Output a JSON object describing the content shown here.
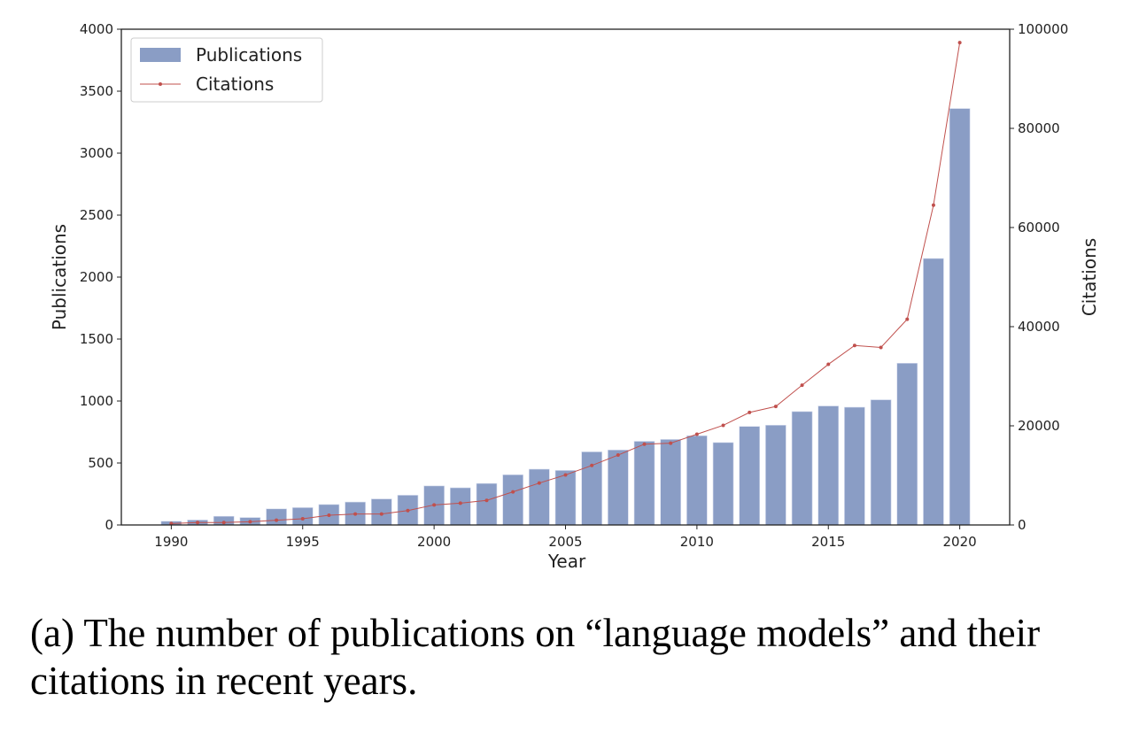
{
  "chart_data": {
    "type": "bar+line",
    "x": [
      1990,
      1991,
      1992,
      1993,
      1994,
      1995,
      1996,
      1997,
      1998,
      1999,
      2000,
      2001,
      2002,
      2003,
      2004,
      2005,
      2006,
      2007,
      2008,
      2009,
      2010,
      2011,
      2012,
      2013,
      2014,
      2015,
      2016,
      2017,
      2018,
      2019,
      2020
    ],
    "series": [
      {
        "name": "Publications",
        "type": "bar",
        "axis": "left",
        "color": "#8a9dc5",
        "values": [
          30,
          40,
          70,
          60,
          130,
          140,
          165,
          185,
          210,
          240,
          315,
          300,
          335,
          405,
          450,
          440,
          590,
          605,
          675,
          690,
          720,
          665,
          795,
          805,
          915,
          960,
          950,
          1010,
          1305,
          2150,
          3360
        ]
      },
      {
        "name": "Citations",
        "type": "line",
        "axis": "right",
        "color": "#c0504d",
        "values": [
          300,
          480,
          500,
          650,
          950,
          1250,
          1960,
          2200,
          2200,
          2900,
          4050,
          4400,
          4950,
          6670,
          8450,
          10100,
          12000,
          14100,
          16300,
          16500,
          18300,
          20100,
          22700,
          23900,
          28200,
          32400,
          36200,
          35800,
          41500,
          64500,
          97300
        ]
      }
    ],
    "xlabel": "Year",
    "ylabel": "Publications",
    "y2label": "Citations",
    "xlim": [
      1988.1,
      2021.9
    ],
    "ylim": [
      0,
      4000
    ],
    "y2lim": [
      0,
      100000
    ],
    "xticks": [
      "1990",
      "1995",
      "2000",
      "2005",
      "2010",
      "2015",
      "2020"
    ],
    "yticks": [
      "0",
      "500",
      "1000",
      "1500",
      "2000",
      "2500",
      "3000",
      "3500",
      "4000"
    ],
    "y2ticks": [
      "0",
      "20000",
      "40000",
      "60000",
      "80000",
      "100000"
    ],
    "grid": false,
    "legend": {
      "placement": "top-left",
      "entries": [
        "Publications",
        "Citations"
      ]
    }
  },
  "caption": {
    "line1": "(a) The number of publications on “language models” and their",
    "line2": "citations in recent years."
  }
}
